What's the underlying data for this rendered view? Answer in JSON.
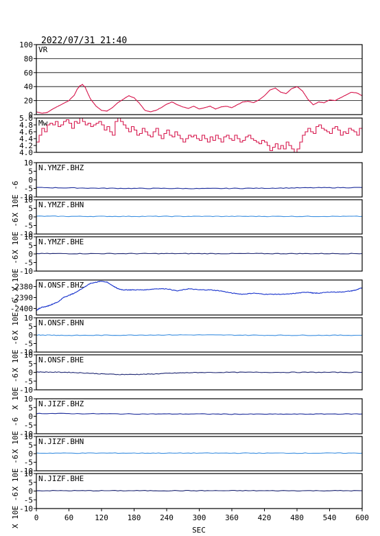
{
  "header": {
    "timestamp": "2022/07/31 21:40"
  },
  "chart_data": {
    "type": "line",
    "xlabel": "SEC",
    "xlim": [
      0,
      600
    ],
    "xticks": [
      0,
      60,
      120,
      180,
      240,
      300,
      360,
      420,
      480,
      540,
      600
    ],
    "panels": [
      {
        "label": "VR",
        "ylim": [
          0,
          100
        ],
        "yticks": [
          0,
          20,
          40,
          60,
          80,
          100
        ],
        "grid": true,
        "color": "#d6134a",
        "step": false,
        "x": [
          0,
          10,
          20,
          30,
          40,
          50,
          60,
          70,
          75,
          80,
          85,
          90,
          95,
          100,
          110,
          120,
          130,
          140,
          150,
          160,
          170,
          180,
          190,
          200,
          210,
          220,
          230,
          240,
          250,
          260,
          270,
          280,
          290,
          300,
          310,
          320,
          330,
          340,
          350,
          360,
          370,
          380,
          390,
          400,
          410,
          420,
          430,
          440,
          450,
          460,
          470,
          480,
          490,
          500,
          510,
          520,
          530,
          540,
          550,
          560,
          570,
          580,
          590,
          600
        ],
        "y": [
          4,
          2,
          3,
          8,
          12,
          16,
          20,
          28,
          36,
          41,
          43,
          39,
          30,
          22,
          12,
          6,
          5,
          10,
          17,
          22,
          27,
          24,
          16,
          6,
          4,
          6,
          10,
          15,
          18,
          14,
          11,
          9,
          12,
          8,
          10,
          12,
          8,
          11,
          12,
          10,
          14,
          18,
          19,
          17,
          21,
          27,
          35,
          38,
          32,
          30,
          37,
          40,
          34,
          22,
          14,
          18,
          17,
          21,
          20,
          24,
          28,
          32,
          31,
          27
        ]
      },
      {
        "label": "Mw",
        "ylim": [
          4.0,
          5.0
        ],
        "yticks": [
          4.0,
          4.2,
          4.4,
          4.6,
          4.8,
          5.0
        ],
        "grid": false,
        "color": "#d6134a",
        "step": true,
        "x": [
          0,
          5,
          10,
          15,
          20,
          25,
          30,
          35,
          40,
          45,
          50,
          55,
          60,
          65,
          70,
          75,
          80,
          85,
          90,
          95,
          100,
          105,
          110,
          115,
          120,
          125,
          130,
          135,
          140,
          145,
          150,
          155,
          160,
          165,
          170,
          175,
          180,
          185,
          190,
          195,
          200,
          205,
          210,
          215,
          220,
          225,
          230,
          235,
          240,
          245,
          250,
          255,
          260,
          265,
          270,
          275,
          280,
          285,
          290,
          295,
          300,
          305,
          310,
          315,
          320,
          325,
          330,
          335,
          340,
          345,
          350,
          355,
          360,
          365,
          370,
          375,
          380,
          385,
          390,
          395,
          400,
          405,
          410,
          415,
          420,
          425,
          430,
          435,
          440,
          445,
          450,
          455,
          460,
          465,
          470,
          475,
          480,
          485,
          490,
          495,
          500,
          505,
          510,
          515,
          520,
          525,
          530,
          535,
          540,
          545,
          550,
          555,
          560,
          565,
          570,
          575,
          580,
          585,
          590,
          595,
          600
        ],
        "y": [
          4.3,
          4.5,
          4.7,
          4.6,
          4.8,
          4.85,
          4.8,
          4.9,
          4.75,
          4.8,
          4.9,
          4.95,
          4.85,
          4.7,
          4.9,
          4.85,
          5.0,
          4.9,
          4.8,
          4.85,
          4.75,
          4.8,
          4.85,
          4.9,
          4.8,
          4.65,
          4.75,
          4.6,
          4.5,
          4.9,
          5.0,
          4.9,
          4.8,
          4.7,
          4.6,
          4.75,
          4.65,
          4.5,
          4.55,
          4.7,
          4.6,
          4.5,
          4.45,
          4.6,
          4.7,
          4.5,
          4.4,
          4.55,
          4.65,
          4.5,
          4.45,
          4.6,
          4.5,
          4.4,
          4.3,
          4.4,
          4.5,
          4.45,
          4.5,
          4.4,
          4.35,
          4.5,
          4.4,
          4.3,
          4.45,
          4.35,
          4.5,
          4.4,
          4.3,
          4.45,
          4.5,
          4.4,
          4.35,
          4.5,
          4.4,
          4.3,
          4.35,
          4.45,
          4.5,
          4.4,
          4.35,
          4.3,
          4.25,
          4.35,
          4.3,
          4.2,
          4.05,
          4.15,
          4.25,
          4.1,
          4.2,
          4.1,
          4.3,
          4.2,
          4.1,
          4.0,
          4.1,
          4.3,
          4.5,
          4.6,
          4.7,
          4.6,
          4.55,
          4.75,
          4.8,
          4.7,
          4.65,
          4.6,
          4.55,
          4.7,
          4.75,
          4.65,
          4.5,
          4.6,
          4.55,
          4.7,
          4.65,
          4.6,
          4.5,
          4.7,
          4.6
        ]
      },
      {
        "label": "N.YMZF.BHZ",
        "ylabel": "X 10E -6",
        "ylim": [
          -10,
          10
        ],
        "yticks": [
          -10,
          -5,
          0,
          5,
          10
        ],
        "color": "#1a2a9a",
        "step": false,
        "x": [
          0,
          60,
          120,
          180,
          240,
          300,
          360,
          420,
          480,
          540,
          600
        ],
        "y": [
          -4.5,
          -4.7,
          -4.9,
          -5.0,
          -5.0,
          -5.1,
          -5.0,
          -4.9,
          -4.7,
          -4.6,
          -4.5
        ]
      },
      {
        "label": "N.YMZF.BHN",
        "ylabel": "X 10E -6",
        "ylim": [
          -10,
          10
        ],
        "yticks": [
          -10,
          -5,
          0,
          5,
          10
        ],
        "color": "#3a8ee0",
        "step": false,
        "x": [
          0,
          60,
          120,
          180,
          240,
          300,
          360,
          420,
          480,
          540,
          600
        ],
        "y": [
          0.4,
          0.3,
          0.3,
          0.3,
          0.3,
          0.3,
          0.3,
          0.3,
          0.3,
          0.3,
          0.3
        ]
      },
      {
        "label": "N.YMZF.BHE",
        "ylabel": "X 10E -6",
        "ylim": [
          -10,
          10
        ],
        "yticks": [
          -10,
          -5,
          0,
          5,
          10
        ],
        "color": "#1a2370",
        "step": false,
        "x": [
          0,
          60,
          120,
          180,
          240,
          300,
          360,
          420,
          480,
          540,
          600
        ],
        "y": [
          0.2,
          0.2,
          0.2,
          0.2,
          0.2,
          0.2,
          0.2,
          0.2,
          0.2,
          0.2,
          0.2
        ]
      },
      {
        "label": "N.ONSF.BHZ",
        "ylabel": "X 10E -6",
        "ylim": [
          -2406,
          -2374
        ],
        "yticks": [
          -2400,
          -2390,
          -2380
        ],
        "color": "#1530cc",
        "step": false,
        "x": [
          0,
          5,
          10,
          20,
          30,
          40,
          50,
          60,
          70,
          80,
          90,
          100,
          110,
          120,
          130,
          140,
          150,
          160,
          170,
          180,
          200,
          220,
          240,
          260,
          280,
          300,
          320,
          340,
          360,
          380,
          400,
          420,
          440,
          460,
          480,
          500,
          510,
          520,
          540,
          560,
          580,
          590,
          600
        ],
        "y": [
          -2402,
          -2400,
          -2399,
          -2398,
          -2396,
          -2394,
          -2390,
          -2388,
          -2386,
          -2383,
          -2380,
          -2377,
          -2376,
          -2375,
          -2376,
          -2379,
          -2382,
          -2383,
          -2383,
          -2383,
          -2383,
          -2382,
          -2382,
          -2384,
          -2382,
          -2383,
          -2383,
          -2384,
          -2386,
          -2387,
          -2386,
          -2387,
          -2387,
          -2387,
          -2386,
          -2385,
          -2386,
          -2386,
          -2385,
          -2385,
          -2384,
          -2383,
          -2381
        ]
      },
      {
        "label": "N.ONSF.BHN",
        "ylabel": "X 10E -6",
        "ylim": [
          -10,
          10
        ],
        "yticks": [
          -10,
          -5,
          0,
          5,
          10
        ],
        "color": "#3a8ee0",
        "step": false,
        "x": [
          0,
          30,
          60,
          120,
          180,
          240,
          300,
          360,
          420,
          480,
          540,
          600
        ],
        "y": [
          0.0,
          -0.1,
          -0.3,
          -0.2,
          -0.1,
          0.0,
          0.0,
          -0.1,
          -0.2,
          -0.2,
          -0.2,
          -0.2
        ]
      },
      {
        "label": "N.ONSF.BHE",
        "ylabel": "X 10E -6",
        "ylim": [
          -10,
          10
        ],
        "yticks": [
          -10,
          -5,
          0,
          5,
          10
        ],
        "color": "#1a2370",
        "step": false,
        "x": [
          0,
          30,
          60,
          90,
          120,
          150,
          180,
          210,
          240,
          270,
          300,
          360,
          420,
          480,
          540,
          600
        ],
        "y": [
          0.2,
          0.1,
          0.0,
          -0.4,
          -0.9,
          -1.2,
          -1.2,
          -1.0,
          -0.6,
          -0.3,
          -0.1,
          0.0,
          0.0,
          0.0,
          0.0,
          0.0
        ]
      },
      {
        "label": "N.JIZF.BHZ",
        "ylabel": "X 10E -6",
        "ylim": [
          -10,
          10
        ],
        "yticks": [
          -10,
          -5,
          0,
          5,
          10
        ],
        "color": "#1a2a9a",
        "step": false,
        "x": [
          0,
          60,
          120,
          180,
          240,
          300,
          360,
          420,
          480,
          540,
          600
        ],
        "y": [
          1.6,
          1.5,
          1.4,
          1.3,
          1.3,
          1.3,
          1.2,
          1.2,
          1.2,
          1.3,
          1.3
        ]
      },
      {
        "label": "N.JIZF.BHN",
        "ylabel": "X 10E -6",
        "ylim": [
          -10,
          10
        ],
        "yticks": [
          -10,
          -5,
          0,
          5,
          10
        ],
        "color": "#3a8ee0",
        "step": false,
        "x": [
          0,
          60,
          120,
          180,
          240,
          300,
          360,
          420,
          480,
          540,
          600
        ],
        "y": [
          0.3,
          0.3,
          0.3,
          0.3,
          0.3,
          0.3,
          0.3,
          0.3,
          0.3,
          0.3,
          0.3
        ]
      },
      {
        "label": "N.JIZF.BHE",
        "ylabel": "X 10E -6",
        "ylim": [
          -10,
          10
        ],
        "yticks": [
          -10,
          -5,
          0,
          5,
          10
        ],
        "color": "#1a2370",
        "step": false,
        "x": [
          0,
          60,
          120,
          180,
          240,
          300,
          360,
          420,
          480,
          540,
          600
        ],
        "y": [
          0.2,
          0.2,
          0.2,
          0.2,
          0.2,
          0.2,
          0.2,
          0.2,
          0.2,
          0.2,
          0.2
        ]
      }
    ]
  }
}
